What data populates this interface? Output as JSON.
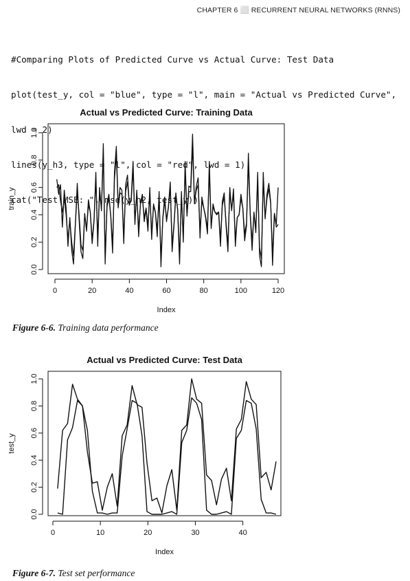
{
  "header": {
    "running_head": "CHAPTER 6 ⬜ RECURRENT NEURAL NETWORKS (RNNS)"
  },
  "code_lines": [
    "#Comparing Plots of Predicted Curve vs Actual Curve: Test Data",
    "plot(test_y, col = \"blue\", type = \"l\", main = \"Actual vs Predicted Curve\",",
    "lwd = 2)",
    "lines(y_h3, type = \"l\", col = \"red\", lwd = 1)",
    "cat(\"Test MSE: \", mse(y_h2, test_y))"
  ],
  "figures": [
    {
      "number": "Figure 6-6.",
      "caption": "Training data performance"
    },
    {
      "number": "Figure 6-7.",
      "caption": "Test set performance"
    }
  ],
  "chart_data": [
    {
      "type": "line",
      "title": "Actual vs Predicted Curve: Training Data",
      "xlabel": "Index",
      "ylabel": "train_y",
      "xlim": [
        1,
        120
      ],
      "ylim": [
        0,
        1
      ],
      "xticks": [
        "0",
        "20",
        "40",
        "60",
        "80",
        "100",
        "120"
      ],
      "yticks": [
        "0.0",
        "0.2",
        "0.4",
        "0.6",
        "0.8",
        "1.0"
      ],
      "grid": false,
      "line_color": "#111111",
      "series": [
        {
          "values": [
            0.66,
            0.55,
            0.62,
            0.31,
            0.58,
            0.45,
            0.17,
            0.38,
            0.14,
            0.04,
            0.33,
            0.63,
            0.36,
            0.13,
            0.08,
            0.41,
            0.28,
            0.51,
            0.42,
            0.19,
            0.35,
            0.71,
            0.17,
            0.6,
            0.43,
            0.92,
            0.04,
            0.48,
            0.55,
            0.39,
            0.12,
            0.71,
            0.9,
            0.45,
            0.6,
            0.58,
            0.19,
            0.62,
            0.69,
            0.47,
            0.52,
            0.79,
            0.33,
            0.58,
            0.24,
            0.49,
            0.55,
            0.35,
            0.44,
            0.28,
            0.6,
            0.22,
            0.48,
            0.42,
            0.24,
            0.57,
            0.02,
            0.38,
            0.53,
            0.35,
            0.46,
            0.64,
            0.13,
            0.32,
            0.56,
            0.43,
            0.04,
            0.57,
            0.2,
            0.79,
            0.39,
            0.61,
            0.6,
            0.99,
            0.48,
            0.61,
            0.67,
            0.23,
            0.53,
            0.45,
            0.38,
            0.26,
            0.79,
            0.3,
            0.48,
            0.42,
            0.4,
            0.42,
            0.17,
            0.5,
            0.56,
            0.32,
            0.13,
            0.6,
            0.43,
            0.59,
            0.17,
            0.38,
            0.4,
            0.55,
            0.45,
            0.21,
            0.32,
            0.85,
            0.4,
            0.14,
            0.42,
            0.27,
            0.71,
            0.1,
            0.02,
            0.71,
            0.37,
            0.55,
            0.63,
            0.49,
            0.03,
            0.41,
            0.31,
            0.33
          ]
        },
        {
          "values": [
            0.6,
            0.62,
            0.5,
            0.42,
            0.52,
            0.4,
            0.22,
            0.36,
            0.2,
            0.1,
            0.34,
            0.57,
            0.4,
            0.18,
            0.14,
            0.4,
            0.3,
            0.47,
            0.42,
            0.22,
            0.36,
            0.65,
            0.24,
            0.55,
            0.45,
            0.84,
            0.1,
            0.46,
            0.52,
            0.4,
            0.18,
            0.66,
            0.84,
            0.46,
            0.56,
            0.55,
            0.24,
            0.57,
            0.64,
            0.48,
            0.5,
            0.73,
            0.36,
            0.55,
            0.29,
            0.48,
            0.52,
            0.38,
            0.45,
            0.32,
            0.56,
            0.26,
            0.46,
            0.42,
            0.29,
            0.53,
            0.08,
            0.37,
            0.5,
            0.37,
            0.45,
            0.6,
            0.18,
            0.33,
            0.53,
            0.44,
            0.09,
            0.53,
            0.24,
            0.73,
            0.4,
            0.57,
            0.57,
            0.9,
            0.5,
            0.58,
            0.62,
            0.28,
            0.5,
            0.45,
            0.39,
            0.3,
            0.72,
            0.32,
            0.46,
            0.42,
            0.41,
            0.42,
            0.22,
            0.47,
            0.53,
            0.34,
            0.18,
            0.56,
            0.44,
            0.55,
            0.22,
            0.38,
            0.4,
            0.52,
            0.45,
            0.26,
            0.34,
            0.78,
            0.41,
            0.2,
            0.41,
            0.3,
            0.65,
            0.16,
            0.08,
            0.65,
            0.38,
            0.52,
            0.59,
            0.48,
            0.1,
            0.41,
            0.33,
            0.6
          ]
        }
      ]
    },
    {
      "type": "line",
      "title": "Actual vs Predicted Curve: Test Data",
      "xlabel": "Index",
      "ylabel": "test_y",
      "xlim": [
        1,
        47
      ],
      "ylim": [
        0,
        1
      ],
      "xticks": [
        "0",
        "10",
        "20",
        "30",
        "40"
      ],
      "yticks": [
        "0.0",
        "0.2",
        "0.4",
        "0.6",
        "0.8",
        "1.0"
      ],
      "grid": false,
      "line_color": "#111111",
      "series": [
        {
          "values": [
            0.19,
            0.62,
            0.67,
            0.96,
            0.85,
            0.8,
            0.46,
            0.23,
            0.24,
            0.03,
            0.2,
            0.3,
            0.06,
            0.58,
            0.66,
            0.95,
            0.81,
            0.79,
            0.38,
            0.1,
            0.12,
            0.01,
            0.21,
            0.33,
            0.03,
            0.62,
            0.66,
            1.0,
            0.85,
            0.82,
            0.29,
            0.25,
            0.07,
            0.26,
            0.34,
            0.1,
            0.63,
            0.7,
            0.98,
            0.85,
            0.81,
            0.27,
            0.31,
            0.18,
            0.39
          ]
        },
        {
          "values": [
            0.01,
            0.0,
            0.55,
            0.64,
            0.84,
            0.8,
            0.62,
            0.17,
            0.01,
            0.01,
            0.0,
            0.01,
            0.01,
            0.43,
            0.63,
            0.84,
            0.82,
            0.58,
            0.02,
            0.0,
            0.0,
            0.0,
            0.01,
            0.02,
            0.0,
            0.53,
            0.62,
            0.86,
            0.82,
            0.7,
            0.03,
            0.0,
            0.0,
            0.01,
            0.02,
            0.0,
            0.56,
            0.62,
            0.84,
            0.82,
            0.63,
            0.11,
            0.01,
            0.01,
            0.0
          ]
        }
      ]
    }
  ]
}
